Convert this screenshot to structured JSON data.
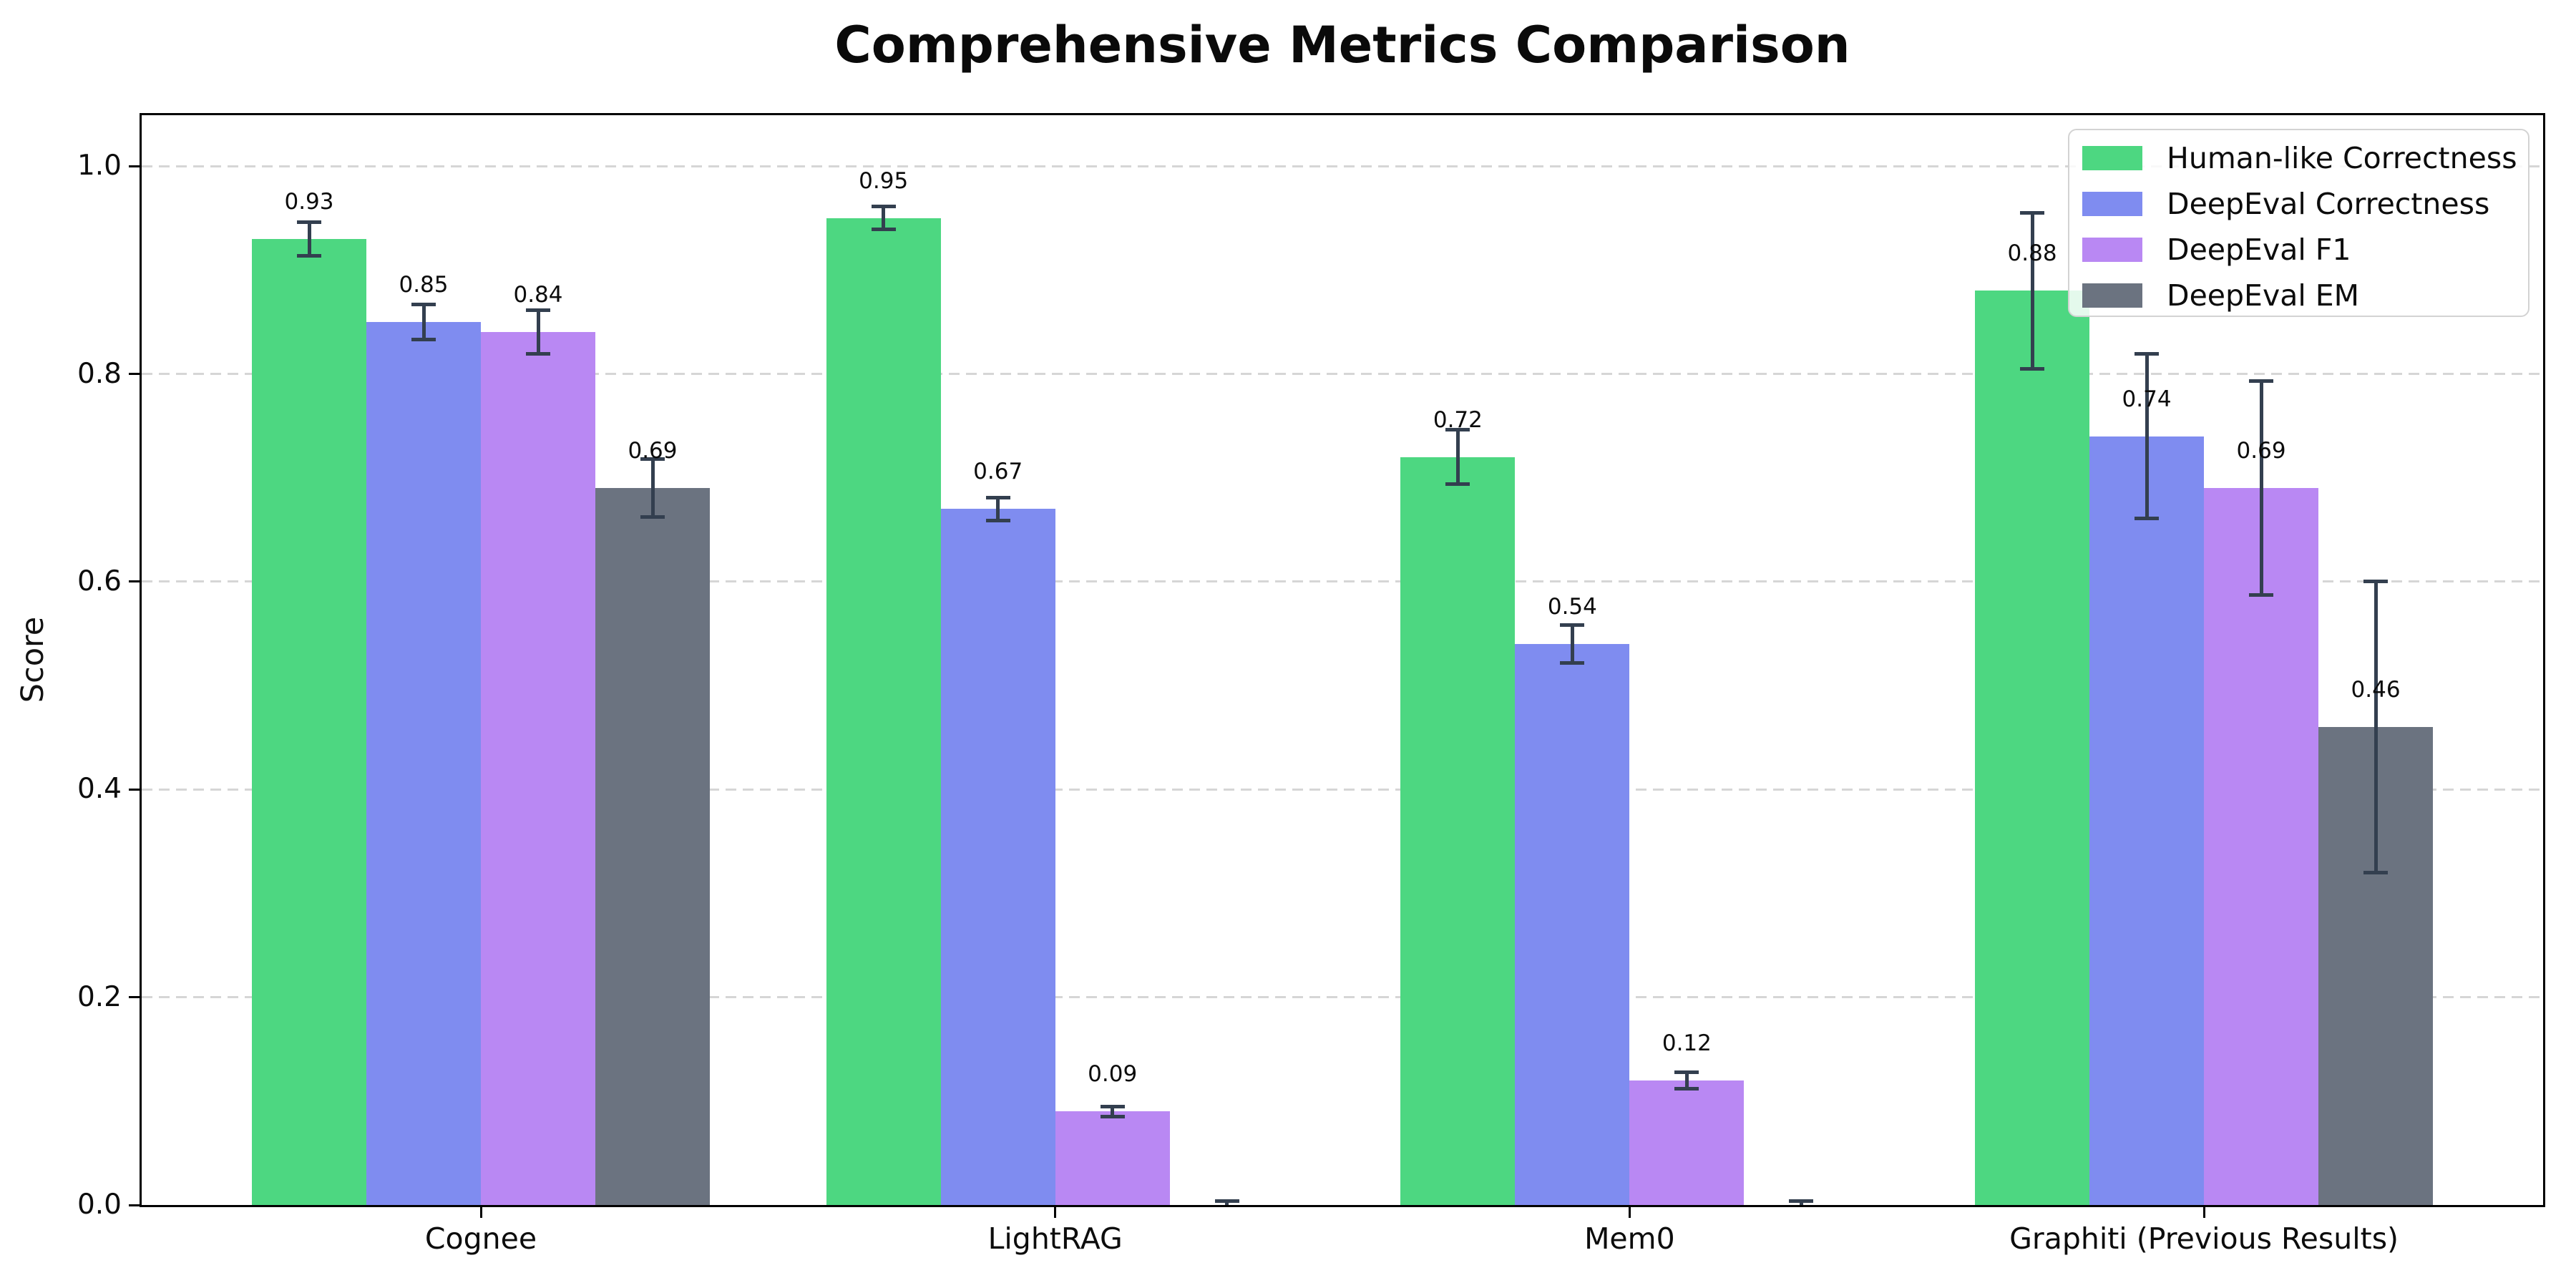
{
  "title": "Comprehensive Metrics Comparison",
  "ylabel": "Score",
  "chart_data": {
    "type": "bar",
    "title": "Comprehensive Metrics Comparison",
    "xlabel": "",
    "ylabel": "Score",
    "categories": [
      "Cognee",
      "LightRAG",
      "Mem0",
      "Graphiti (Previous Results)"
    ],
    "series": [
      {
        "name": "Human-like Correctness",
        "color": "#4dd781",
        "values": [
          0.93,
          0.95,
          0.72,
          0.88
        ],
        "errors": [
          0.016,
          0.011,
          0.026,
          0.075
        ],
        "labels": [
          "0.93",
          "0.95",
          "0.72",
          "0.88"
        ]
      },
      {
        "name": "DeepEval Correctness",
        "color": "#7f8cf0",
        "values": [
          0.85,
          0.67,
          0.54,
          0.74
        ],
        "errors": [
          0.017,
          0.011,
          0.018,
          0.079
        ],
        "labels": [
          "0.85",
          "0.67",
          "0.54",
          "0.74"
        ]
      },
      {
        "name": "DeepEval F1",
        "color": "#b988f3",
        "values": [
          0.84,
          0.09,
          0.12,
          0.69
        ],
        "errors": [
          0.021,
          0.005,
          0.008,
          0.103
        ],
        "labels": [
          "0.84",
          "0.09",
          "0.12",
          "0.69"
        ]
      },
      {
        "name": "DeepEval EM",
        "color": "#6b7380",
        "values": [
          0.69,
          0.0,
          0.0,
          0.46
        ],
        "errors": [
          0.028,
          0.004,
          0.004,
          0.14
        ],
        "labels": [
          "0.69",
          "",
          "",
          "0.46"
        ]
      }
    ],
    "yticks": [
      {
        "label": "0.0",
        "value": 0.0
      },
      {
        "label": "0.2",
        "value": 0.2
      },
      {
        "label": "0.4",
        "value": 0.4
      },
      {
        "label": "0.6",
        "value": 0.6
      },
      {
        "label": "0.8",
        "value": 0.8
      },
      {
        "label": "1.0",
        "value": 1.0
      }
    ],
    "ylim": [
      0,
      1.049
    ],
    "grid": "horizontal-dashed",
    "legend_position": "upper-right",
    "error_color": "#333f4f",
    "grid_color": "#d6d6d6",
    "background": "#ffffff"
  }
}
